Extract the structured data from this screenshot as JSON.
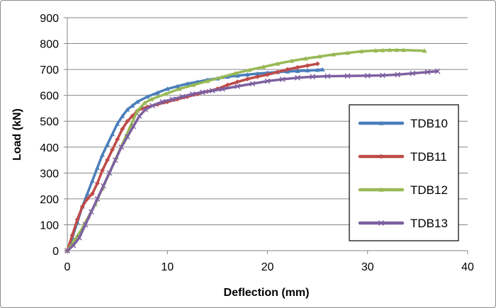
{
  "chart_data": {
    "type": "line",
    "title": "",
    "xlabel": "Deflection (mm)",
    "ylabel": "Load (kN)",
    "xlim": [
      0,
      40
    ],
    "ylim": [
      0,
      900
    ],
    "xticks": [
      "0",
      "10",
      "20",
      "30",
      "40"
    ],
    "yticks": [
      "0",
      "100",
      "200",
      "300",
      "400",
      "500",
      "600",
      "700",
      "800",
      "900"
    ],
    "grid": "horizontal",
    "legend_position": "right",
    "series": [
      {
        "name": "TDB10",
        "color": "#4a7ebb",
        "marker": "triangle",
        "x": [
          0,
          0.5,
          1,
          1.5,
          2,
          2.5,
          3,
          3.5,
          4,
          4.5,
          5,
          5.5,
          6,
          6.5,
          7,
          8,
          9,
          10,
          11,
          12,
          13,
          14,
          15,
          16,
          17,
          18,
          19,
          20,
          21,
          22,
          23,
          24,
          25,
          25.5
        ],
        "y": [
          0,
          50,
          110,
          170,
          220,
          270,
          320,
          370,
          410,
          450,
          490,
          520,
          545,
          560,
          575,
          595,
          610,
          625,
          635,
          645,
          652,
          660,
          665,
          672,
          676,
          680,
          684,
          687,
          690,
          692,
          694,
          696,
          698,
          700
        ]
      },
      {
        "name": "TDB11",
        "color": "#be4b48",
        "marker": "diamond",
        "x": [
          0,
          0.5,
          1,
          1.5,
          2,
          2.5,
          3,
          3.5,
          4,
          4.5,
          5,
          5.5,
          6,
          6.5,
          7,
          7.5,
          8,
          9,
          10,
          11,
          12,
          13,
          14,
          15,
          16,
          17,
          18,
          19,
          20,
          21,
          22,
          23,
          24,
          25
        ],
        "y": [
          0,
          60,
          120,
          170,
          200,
          220,
          260,
          310,
          350,
          390,
          430,
          470,
          500,
          520,
          540,
          550,
          555,
          565,
          575,
          585,
          595,
          605,
          615,
          625,
          640,
          652,
          663,
          672,
          680,
          690,
          700,
          708,
          715,
          722
        ]
      },
      {
        "name": "TDB12",
        "color": "#98b954",
        "marker": "triangle",
        "x": [
          0,
          0.7,
          1.4,
          2.1,
          2.8,
          3.5,
          4.2,
          4.9,
          5.6,
          6.3,
          7,
          7.7,
          8.4,
          9.8,
          11.2,
          12.6,
          14,
          15.4,
          16.8,
          18.2,
          19.6,
          21,
          22.4,
          23.8,
          25.2,
          26.6,
          28,
          29.4,
          30.8,
          31.5,
          32.2,
          32.9,
          33.6,
          35.7
        ],
        "y": [
          0,
          40,
          80,
          130,
          180,
          240,
          300,
          360,
          420,
          480,
          540,
          570,
          585,
          605,
          625,
          640,
          655,
          670,
          685,
          698,
          710,
          722,
          733,
          742,
          750,
          758,
          764,
          770,
          773,
          774,
          775,
          775,
          775,
          772
        ]
      },
      {
        "name": "TDB13",
        "color": "#7d60a0",
        "marker": "x",
        "x": [
          0,
          0.6,
          1.2,
          1.8,
          2.4,
          3,
          3.6,
          4.2,
          4.8,
          5.4,
          6,
          6.6,
          7.2,
          7.8,
          8.5,
          9.5,
          10.5,
          11.5,
          12.5,
          13.5,
          14.5,
          15.5,
          17,
          18.5,
          20,
          21.5,
          23,
          24.5,
          26,
          28,
          30,
          31.5,
          33,
          34.5,
          36,
          37
        ],
        "y": [
          0,
          20,
          50,
          100,
          150,
          200,
          250,
          300,
          350,
          400,
          440,
          480,
          520,
          545,
          560,
          575,
          585,
          595,
          605,
          612,
          618,
          624,
          635,
          645,
          655,
          662,
          668,
          672,
          674,
          675,
          676,
          677,
          680,
          685,
          690,
          693
        ]
      }
    ]
  }
}
